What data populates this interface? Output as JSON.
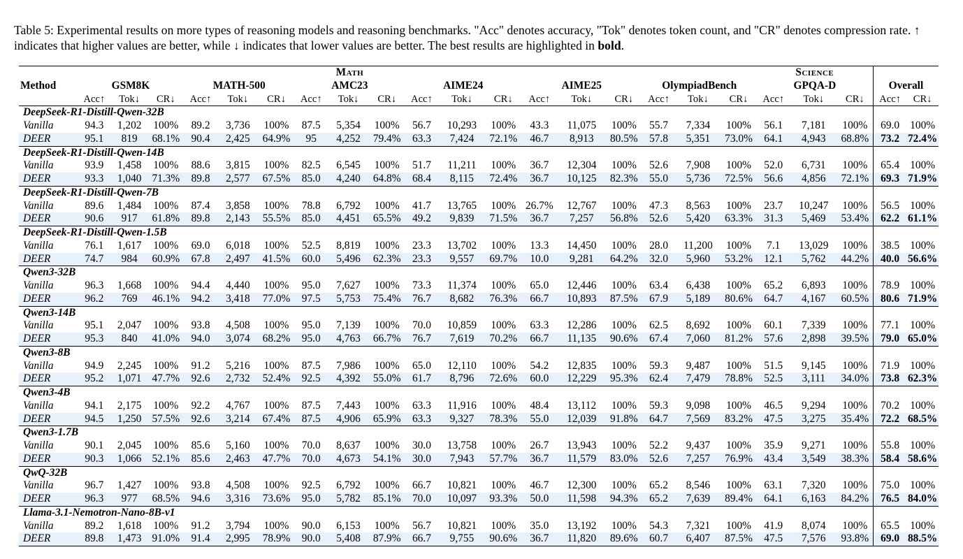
{
  "caption": {
    "prefix": "Table 5: Experimental results on more types of reasoning models and reasoning benchmarks. \"Acc\" denotes accuracy, \"Tok\" denotes token count, and \"CR\" denotes compression rate. ↑ indicates that higher values are better, while ↓ indicates that lower values are better. The best results are highlighted in",
    "bold_word": "bold",
    "suffix": "."
  },
  "header": {
    "method": "Method",
    "math_group": "Math",
    "science_group": "Science",
    "benchmarks": [
      "GSM8K",
      "MATH-500",
      "AMC23",
      "AIME24",
      "AIME25",
      "OlympiadBench",
      "GPQA-D",
      "Overall"
    ],
    "acc": "Acc↑",
    "tok": "Tok↓",
    "cr": "CR↓"
  },
  "groups": [
    {
      "name": "DeepSeek-R1-Distill-Qwen-32B",
      "vanilla": {
        "label": "Vanilla",
        "cells": [
          "94.3",
          "1,202",
          "100%",
          "89.2",
          "3,736",
          "100%",
          "87.5",
          "5,354",
          "100%",
          "56.7",
          "10,293",
          "100%",
          "43.3",
          "11,075",
          "100%",
          "55.7",
          "7,334",
          "100%",
          "56.1",
          "7,181",
          "100%"
        ],
        "overall": [
          "69.0",
          "100%"
        ]
      },
      "deer": {
        "label": "DEER",
        "cells": [
          "95.1",
          "819",
          "68.1%",
          "90.4",
          "2,425",
          "64.9%",
          "95",
          "4,252",
          "79.4%",
          "63.3",
          "7,424",
          "72.1%",
          "46.7",
          "8,913",
          "80.5%",
          "57.8",
          "5,351",
          "73.0%",
          "64.1",
          "4,943",
          "68.8%"
        ],
        "overall": [
          "73.2",
          "72.4%"
        ]
      }
    },
    {
      "name": "DeepSeek-R1-Distill-Qwen-14B",
      "vanilla": {
        "label": "Vanilla",
        "cells": [
          "93.9",
          "1,458",
          "100%",
          "88.6",
          "3,815",
          "100%",
          "82.5",
          "6,545",
          "100%",
          "51.7",
          "11,211",
          "100%",
          "36.7",
          "12,304",
          "100%",
          "52.6",
          "7,908",
          "100%",
          "52.0",
          "6,731",
          "100%"
        ],
        "overall": [
          "65.4",
          "100%"
        ]
      },
      "deer": {
        "label": "DEER",
        "cells": [
          "93.3",
          "1,040",
          "71.3%",
          "89.8",
          "2,577",
          "67.5%",
          "85.0",
          "4,240",
          "64.8%",
          "68.4",
          "8,115",
          "72.4%",
          "36.7",
          "10,125",
          "82.3%",
          "55.0",
          "5,736",
          "72.5%",
          "56.6",
          "4,856",
          "72.1%"
        ],
        "overall": [
          "69.3",
          "71.9%"
        ]
      }
    },
    {
      "name": "DeepSeek-R1-Distill-Qwen-7B",
      "vanilla": {
        "label": "Vanilla",
        "cells": [
          "89.6",
          "1,484",
          "100%",
          "87.4",
          "3,858",
          "100%",
          "78.8",
          "6,792",
          "100%",
          "41.7",
          "13,765",
          "100%",
          "26.7%",
          "12,767",
          "100%",
          "47.3",
          "8,563",
          "100%",
          "23.7",
          "10,247",
          "100%"
        ],
        "overall": [
          "56.5",
          "100%"
        ]
      },
      "deer": {
        "label": "DEER",
        "cells": [
          "90.6",
          "917",
          "61.8%",
          "89.8",
          "2,143",
          "55.5%",
          "85.0",
          "4,451",
          "65.5%",
          "49.2",
          "9,839",
          "71.5%",
          "36.7",
          "7,257",
          "56.8%",
          "52.6",
          "5,420",
          "63.3%",
          "31.3",
          "5,469",
          "53.4%"
        ],
        "overall": [
          "62.2",
          "61.1%"
        ]
      }
    },
    {
      "name": "DeepSeek-R1-Distill-Qwen-1.5B",
      "vanilla": {
        "label": "Vanilla",
        "cells": [
          "76.1",
          "1,617",
          "100%",
          "69.0",
          "6,018",
          "100%",
          "52.5",
          "8,819",
          "100%",
          "23.3",
          "13,702",
          "100%",
          "13.3",
          "14,450",
          "100%",
          "28.0",
          "11,200",
          "100%",
          "7.1",
          "13,029",
          "100%"
        ],
        "overall": [
          "38.5",
          "100%"
        ]
      },
      "deer": {
        "label": "DEER",
        "cells": [
          "74.7",
          "984",
          "60.9%",
          "67.8",
          "2,497",
          "41.5%",
          "60.0",
          "5,496",
          "62.3%",
          "23.3",
          "9,557",
          "69.7%",
          "10.0",
          "9,281",
          "64.2%",
          "32.0",
          "5,960",
          "53.2%",
          "12.1",
          "5,762",
          "44.2%"
        ],
        "overall": [
          "40.0",
          "56.6%"
        ]
      }
    },
    {
      "name": "Qwen3-32B",
      "vanilla": {
        "label": "Vanilla",
        "cells": [
          "96.3",
          "1,668",
          "100%",
          "94.4",
          "4,440",
          "100%",
          "95.0",
          "7,627",
          "100%",
          "73.3",
          "11,374",
          "100%",
          "65.0",
          "12,446",
          "100%",
          "63.4",
          "6,438",
          "100%",
          "65.2",
          "6,893",
          "100%"
        ],
        "overall": [
          "78.9",
          "100%"
        ]
      },
      "deer": {
        "label": "DEER",
        "cells": [
          "96.2",
          "769",
          "46.1%",
          "94.2",
          "3,418",
          "77.0%",
          "97.5",
          "5,753",
          "75.4%",
          "76.7",
          "8,682",
          "76.3%",
          "66.7",
          "10,893",
          "87.5%",
          "67.9",
          "5,189",
          "80.6%",
          "64.7",
          "4,167",
          "60.5%"
        ],
        "overall": [
          "80.6",
          "71.9%"
        ]
      }
    },
    {
      "name": "Qwen3-14B",
      "vanilla": {
        "label": "Vanilla",
        "cells": [
          "95.1",
          "2,047",
          "100%",
          "93.8",
          "4,508",
          "100%",
          "95.0",
          "7,139",
          "100%",
          "70.0",
          "10,859",
          "100%",
          "63.3",
          "12,286",
          "100%",
          "62.5",
          "8,692",
          "100%",
          "60.1",
          "7,339",
          "100%"
        ],
        "overall": [
          "77.1",
          "100%"
        ]
      },
      "deer": {
        "label": "DEER",
        "cells": [
          "95.3",
          "840",
          "41.0%",
          "94.0",
          "3,074",
          "68.2%",
          "95.0",
          "4,763",
          "66.7%",
          "76.7",
          "7,619",
          "70.2%",
          "66.7",
          "11,135",
          "90.6%",
          "67.4",
          "7,060",
          "81.2%",
          "57.6",
          "2,898",
          "39.5%"
        ],
        "overall": [
          "79.0",
          "65.0%"
        ]
      }
    },
    {
      "name": "Qwen3-8B",
      "vanilla": {
        "label": "Vanilla",
        "cells": [
          "94.9",
          "2,245",
          "100%",
          "91.2",
          "5,216",
          "100%",
          "87.5",
          "7,986",
          "100%",
          "65.0",
          "12,110",
          "100%",
          "54.2",
          "12,835",
          "100%",
          "59.3",
          "9,487",
          "100%",
          "51.5",
          "9,145",
          "100%"
        ],
        "overall": [
          "71.9",
          "100%"
        ]
      },
      "deer": {
        "label": "DEER",
        "cells": [
          "95.2",
          "1,071",
          "47.7%",
          "92.6",
          "2,732",
          "52.4%",
          "92.5",
          "4,392",
          "55.0%",
          "61.7",
          "8,796",
          "72.6%",
          "60.0",
          "12,229",
          "95.3%",
          "62.4",
          "7,479",
          "78.8%",
          "52.5",
          "3,111",
          "34.0%"
        ],
        "overall": [
          "73.8",
          "62.3%"
        ]
      }
    },
    {
      "name": "Qwen3-4B",
      "vanilla": {
        "label": "Vanilla",
        "cells": [
          "94.1",
          "2,175",
          "100%",
          "92.2",
          "4,767",
          "100%",
          "87.5",
          "7,443",
          "100%",
          "63.3",
          "11,916",
          "100%",
          "48.4",
          "13,112",
          "100%",
          "59.3",
          "9,098",
          "100%",
          "46.5",
          "9,294",
          "100%"
        ],
        "overall": [
          "70.2",
          "100%"
        ]
      },
      "deer": {
        "label": "DEER",
        "cells": [
          "94.5",
          "1,250",
          "57.5%",
          "92.6",
          "3,214",
          "67.4%",
          "87.5",
          "4,906",
          "65.9%",
          "63.3",
          "9,327",
          "78.3%",
          "55.0",
          "12,039",
          "91.8%",
          "64.7",
          "7,569",
          "83.2%",
          "47.5",
          "3,275",
          "35.4%"
        ],
        "overall": [
          "72.2",
          "68.5%"
        ]
      }
    },
    {
      "name": "Qwen3-1.7B",
      "vanilla": {
        "label": "Vanilla",
        "cells": [
          "90.1",
          "2,045",
          "100%",
          "85.6",
          "5,160",
          "100%",
          "70.0",
          "8,637",
          "100%",
          "30.0",
          "13,758",
          "100%",
          "26.7",
          "13,943",
          "100%",
          "52.2",
          "9,437",
          "100%",
          "35.9",
          "9,271",
          "100%"
        ],
        "overall": [
          "55.8",
          "100%"
        ]
      },
      "deer": {
        "label": "DEER",
        "cells": [
          "90.3",
          "1,066",
          "52.1%",
          "85.6",
          "2,463",
          "47.7%",
          "70.0",
          "4,673",
          "54.1%",
          "30.0",
          "7,943",
          "57.7%",
          "36.7",
          "11,579",
          "83.0%",
          "52.6",
          "7,257",
          "76.9%",
          "43.4",
          "3,549",
          "38.3%"
        ],
        "overall": [
          "58.4",
          "58.6%"
        ]
      }
    },
    {
      "name": "QwQ-32B",
      "vanilla": {
        "label": "Vanilla",
        "cells": [
          "96.7",
          "1,427",
          "100%",
          "93.8",
          "4,508",
          "100%",
          "92.5",
          "6,792",
          "100%",
          "66.7",
          "10,821",
          "100%",
          "46.7",
          "12,300",
          "100%",
          "65.2",
          "8,546",
          "100%",
          "63.1",
          "7,320",
          "100%"
        ],
        "overall": [
          "75.0",
          "100%"
        ]
      },
      "deer": {
        "label": "DEER",
        "cells": [
          "96.3",
          "977",
          "68.5%",
          "94.6",
          "3,316",
          "73.6%",
          "95.0",
          "5,782",
          "85.1%",
          "70.0",
          "10,097",
          "93.3%",
          "50.0",
          "11,598",
          "94.3%",
          "65.2",
          "7,639",
          "89.4%",
          "64.1",
          "6,163",
          "84.2%"
        ],
        "overall": [
          "76.5",
          "84.0%"
        ]
      }
    },
    {
      "name": "Llama-3.1-Nemotron-Nano-8B-v1",
      "vanilla": {
        "label": "Vanilla",
        "cells": [
          "89.2",
          "1,618",
          "100%",
          "91.2",
          "3,794",
          "100%",
          "90.0",
          "6,153",
          "100%",
          "56.7",
          "10,821",
          "100%",
          "35.0",
          "13,192",
          "100%",
          "54.3",
          "7,321",
          "100%",
          "41.9",
          "8,074",
          "100%"
        ],
        "overall": [
          "65.5",
          "100%"
        ]
      },
      "deer": {
        "label": "DEER",
        "cells": [
          "89.8",
          "1,473",
          "91.0%",
          "91.4",
          "2,995",
          "78.9%",
          "90.0",
          "5,408",
          "87.9%",
          "66.7",
          "9,755",
          "90.6%",
          "36.7",
          "11,820",
          "89.6%",
          "60.7",
          "6,407",
          "87.5%",
          "47.5",
          "7,576",
          "93.8%"
        ],
        "overall": [
          "69.0",
          "88.5%"
        ]
      }
    }
  ]
}
